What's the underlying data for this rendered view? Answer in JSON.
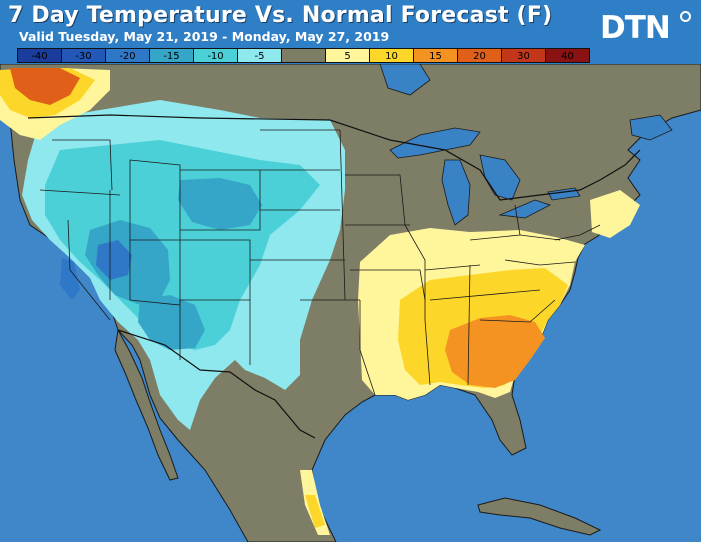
{
  "title": "7 Day Temperature Vs. Normal Forecast (F)",
  "subtitle": "Valid Tuesday, May 21, 2019 - Monday, May 27, 2019",
  "logo": "DTN",
  "legend": [
    {
      "label": "-40",
      "color": "#1a3c9a"
    },
    {
      "label": "-30",
      "color": "#2358b8"
    },
    {
      "label": "-20",
      "color": "#2f78c8"
    },
    {
      "label": "-15",
      "color": "#35a5c8"
    },
    {
      "label": "-10",
      "color": "#4cd0d8"
    },
    {
      "label": "-5",
      "color": "#8fe8ee"
    },
    {
      "label": "",
      "color": "#7e7d66"
    },
    {
      "label": "5",
      "color": "#fff59a"
    },
    {
      "label": "10",
      "color": "#fdd62a"
    },
    {
      "label": "15",
      "color": "#f59322"
    },
    {
      "label": "20",
      "color": "#e0601a"
    },
    {
      "label": "30",
      "color": "#c2361a"
    },
    {
      "label": "40",
      "color": "#8a1212"
    }
  ],
  "colors": {
    "ocean": "#3f87c9",
    "land_normal": "#7e7d66",
    "lake": "#3a82c6",
    "border": "#1a1a1a"
  }
}
